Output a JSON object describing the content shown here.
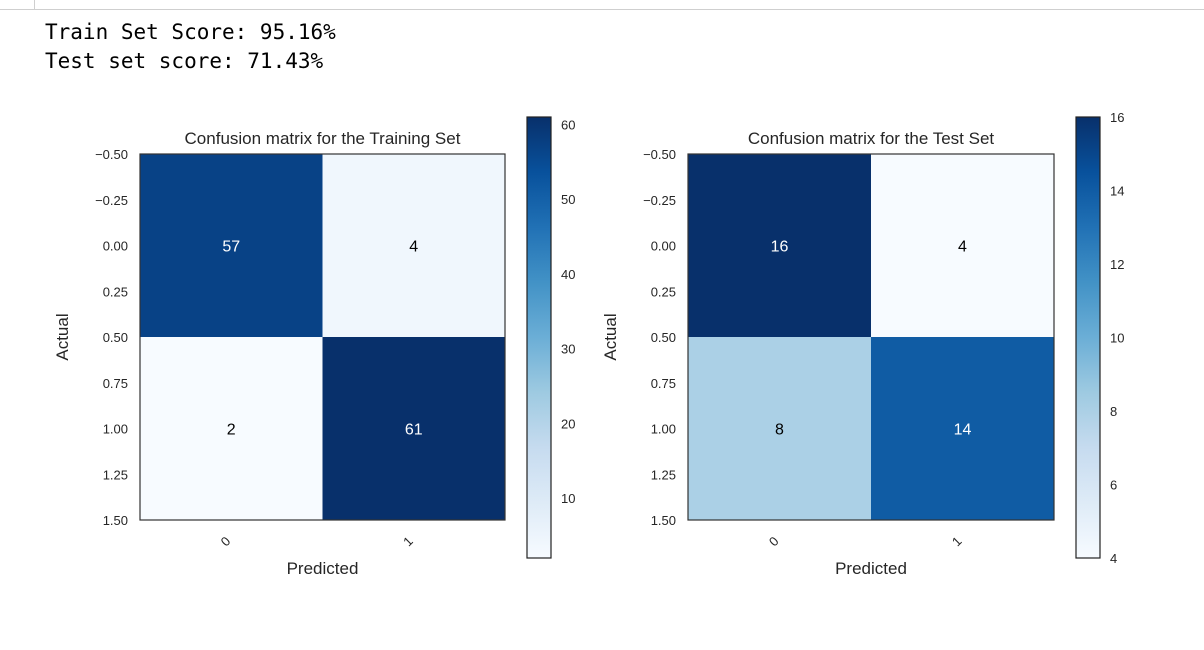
{
  "output_lines": [
    "Train Set Score: 95.16%",
    "Test set score: 71.43%"
  ],
  "chart_data": [
    {
      "type": "heatmap",
      "title": "Confusion matrix for the Training Set",
      "xlabel": "Predicted",
      "ylabel": "Actual",
      "x_tick_labels": [
        "0",
        "1"
      ],
      "y_tick_labels": [
        "-0.50",
        "-0.25",
        "0.00",
        "0.25",
        "0.50",
        "0.75",
        "1.00",
        "1.25",
        "1.50"
      ],
      "y_range": [
        -0.5,
        1.5
      ],
      "matrix": [
        [
          57,
          4
        ],
        [
          2,
          61
        ]
      ],
      "colorbar": {
        "min": 2,
        "max": 61,
        "ticks": [
          "10",
          "20",
          "30",
          "40",
          "50",
          "60"
        ],
        "tick_values": [
          10,
          20,
          30,
          40,
          50,
          60
        ]
      },
      "colormap": "Blues"
    },
    {
      "type": "heatmap",
      "title": "Confusion matrix for the Test Set",
      "xlabel": "Predicted",
      "ylabel": "Actual",
      "x_tick_labels": [
        "0",
        "1"
      ],
      "y_tick_labels": [
        "-0.50",
        "-0.25",
        "0.00",
        "0.25",
        "0.50",
        "0.75",
        "1.00",
        "1.25",
        "1.50"
      ],
      "y_range": [
        -0.5,
        1.5
      ],
      "matrix": [
        [
          16,
          4
        ],
        [
          8,
          14
        ]
      ],
      "colorbar": {
        "min": 4,
        "max": 16,
        "ticks": [
          "4",
          "6",
          "8",
          "10",
          "12",
          "14",
          "16"
        ],
        "tick_values": [
          4,
          6,
          8,
          10,
          12,
          14,
          16
        ]
      },
      "colormap": "Blues"
    }
  ]
}
